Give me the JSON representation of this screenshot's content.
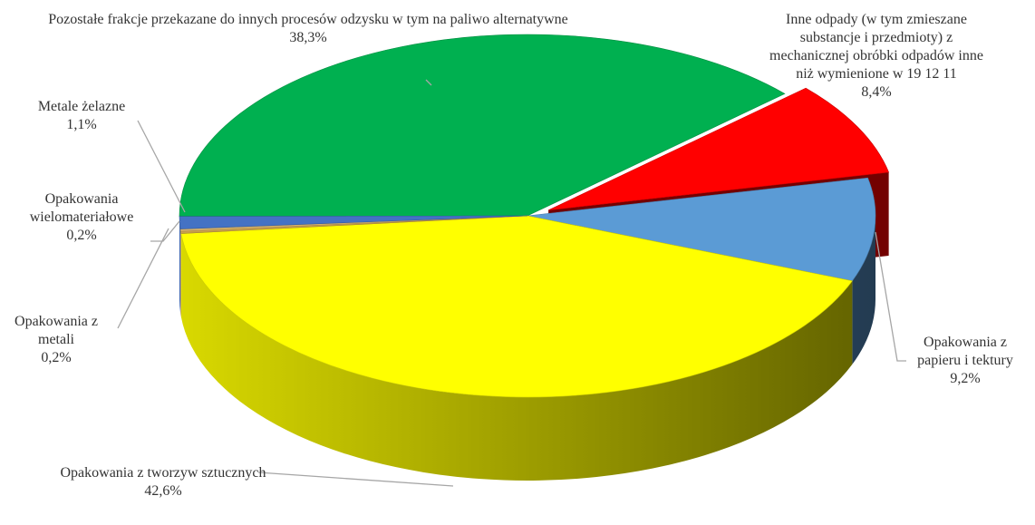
{
  "chart_data": {
    "type": "pie",
    "categories": [
      "Pozostałe frakcje przekazane do innych procesów odzysku w tym na paliwo alternatywne",
      "Inne odpady (w tym zmieszane substancje i przedmioty) z mechanicznej obróbki odpadów inne niż wymienione w 19 12 11",
      "Opakowania z papieru i tektury",
      "Opakowania z tworzyw sztucznych",
      "Opakowania z metali",
      "Opakowania wielomateriałowe",
      "Metale żelazne"
    ],
    "values": [
      38.3,
      8.4,
      9.2,
      42.6,
      0.2,
      0.2,
      1.1
    ],
    "value_labels": [
      "38,3%",
      "8,4%",
      "9,2%",
      "42,6%",
      "0,2%",
      "0,2%",
      "1,1%"
    ],
    "colors": [
      "#00b050",
      "#ff0000",
      "#5b9bd5",
      "#ffff00",
      "#c9a04a",
      "#d9b36a",
      "#4472c4"
    ],
    "exploded": [
      1
    ]
  }
}
